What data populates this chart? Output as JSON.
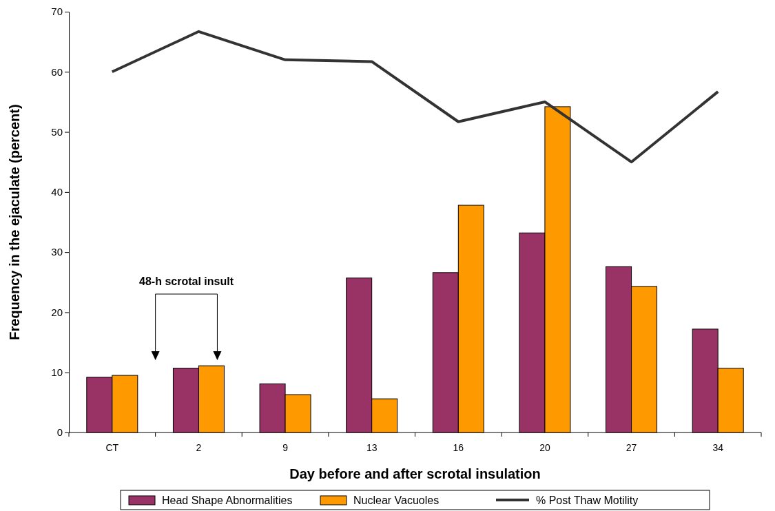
{
  "chart_data": {
    "type": "bar",
    "xlabel": "Day before and after scrotal insulation",
    "ylabel": "Frequency in the ejaculate (percent)",
    "categories": [
      "CT",
      "2",
      "9",
      "13",
      "16",
      "20",
      "27",
      "34"
    ],
    "series": [
      {
        "name": "Head Shape Abnormalities",
        "color": "#993366",
        "values": [
          9.2,
          10.7,
          8.1,
          25.7,
          26.6,
          33.2,
          27.6,
          17.2
        ]
      },
      {
        "name": "Nuclear Vacuoles",
        "color": "#ff9900",
        "values": [
          9.5,
          11.1,
          6.3,
          5.6,
          37.8,
          54.2,
          24.3,
          10.7
        ]
      },
      {
        "name": "% Post Thaw Motility",
        "type": "line",
        "color": "#333333",
        "values": [
          60,
          66.7,
          62,
          61.7,
          51.7,
          55,
          45,
          56.7
        ]
      }
    ],
    "ylim": [
      0,
      70
    ],
    "yticks": [
      0,
      10,
      20,
      30,
      40,
      50,
      60,
      70
    ],
    "grid": false,
    "legend": "bottom",
    "annotations": [
      "48-h scrotal insult"
    ]
  }
}
